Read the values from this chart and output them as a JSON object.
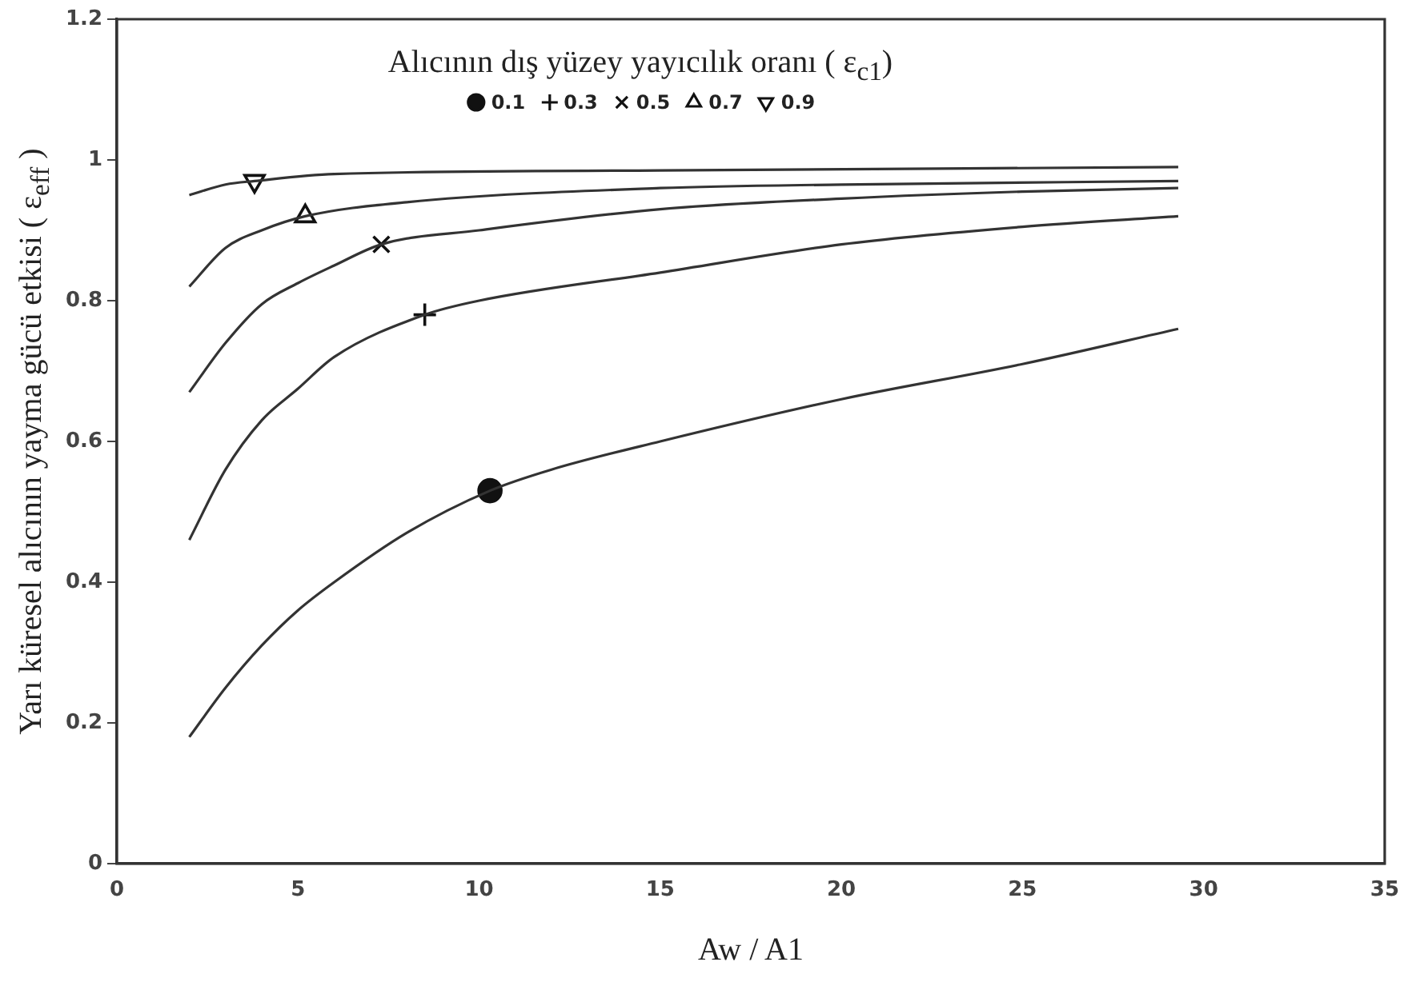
{
  "chart_data": {
    "type": "line",
    "xlabel": "Aw / A1",
    "ylabel": "Yarı küresel alıcının yayma gücü etkisi ( ε$_{eff}$ )",
    "legend_title": "Alıcının dış yüzey yayıcılık oranı ( ε$_{c1}$)",
    "legend": "top",
    "grid": false,
    "line_style": "solid",
    "xlim": [
      0,
      35
    ],
    "xticks": [
      0,
      5,
      10,
      15,
      20,
      25,
      30,
      35
    ],
    "ylim": [
      0,
      1.2
    ],
    "yticks": [
      0,
      0.2,
      0.4,
      0.6,
      0.8,
      1,
      1.2
    ],
    "series": [
      {
        "type": "line",
        "color": "#333333",
        "marker": "none",
        "x": [
          2,
          3,
          4,
          5,
          6,
          8,
          10.3,
          12,
          15,
          20,
          25,
          29.3
        ],
        "values": [
          0.18,
          0.25,
          0.31,
          0.36,
          0.4,
          0.47,
          0.53,
          0.56,
          0.6,
          0.66,
          0.71,
          0.76
        ]
      },
      {
        "type": "line",
        "color": "#333333",
        "marker": "none",
        "x": [
          2,
          3,
          4,
          5,
          6,
          8.5,
          10,
          15,
          20,
          25,
          29.3
        ],
        "values": [
          0.46,
          0.56,
          0.63,
          0.675,
          0.72,
          0.78,
          0.8,
          0.84,
          0.88,
          0.905,
          0.92
        ]
      },
      {
        "type": "line",
        "color": "#333333",
        "marker": "none",
        "x": [
          2,
          3,
          4,
          5,
          6,
          7.3,
          10,
          15,
          20,
          25,
          29.3
        ],
        "values": [
          0.67,
          0.74,
          0.795,
          0.825,
          0.85,
          0.88,
          0.9,
          0.93,
          0.945,
          0.955,
          0.96
        ]
      },
      {
        "type": "line",
        "color": "#333333",
        "marker": "none",
        "x": [
          2,
          3,
          4,
          5.2,
          8,
          15,
          20,
          29.3
        ],
        "values": [
          0.82,
          0.875,
          0.9,
          0.92,
          0.94,
          0.96,
          0.965,
          0.97
        ]
      },
      {
        "type": "line",
        "color": "#333333",
        "marker": "none",
        "x": [
          2,
          3,
          3.8,
          6,
          15,
          29.3
        ],
        "values": [
          0.95,
          0.965,
          0.97,
          0.98,
          0.985,
          0.99
        ]
      },
      {
        "type": "scatter",
        "name": "0.1",
        "color": "#111111",
        "marker": "circle",
        "x": [
          10.3
        ],
        "values": [
          0.53
        ]
      },
      {
        "type": "scatter",
        "name": "0.3",
        "color": "#111111",
        "marker": "cross",
        "x": [
          8.5
        ],
        "values": [
          0.78
        ]
      },
      {
        "type": "scatter",
        "name": "0.5",
        "color": "#111111",
        "marker": "x",
        "x": [
          7.3
        ],
        "values": [
          0.88
        ]
      },
      {
        "type": "scatter",
        "name": "0.7",
        "color": "#111111",
        "marker": "triangle",
        "x": [
          5.2
        ],
        "values": [
          0.92
        ]
      },
      {
        "type": "scatter",
        "name": "0.9",
        "color": "#111111",
        "marker": "triangle-down",
        "x": [
          3.8
        ],
        "values": [
          0.97
        ]
      }
    ]
  }
}
